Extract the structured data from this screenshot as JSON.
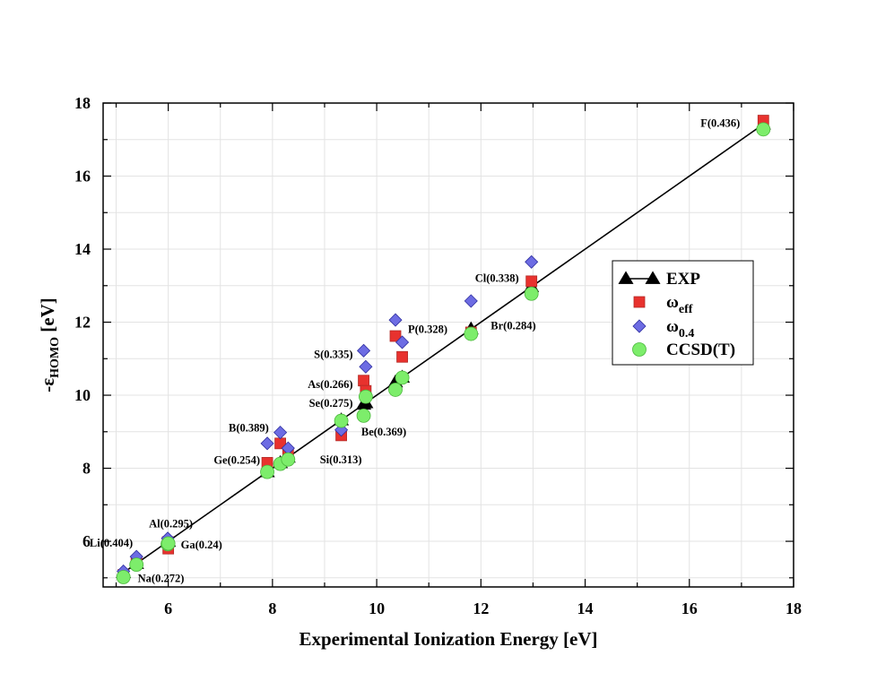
{
  "chart_data": {
    "type": "scatter",
    "xlabel": "Experimental Ionization Energy [eV]",
    "ylabel": {
      "prefix": "-ε",
      "sub": "HOMO",
      "suffix": " [eV]"
    },
    "xlim": [
      4.75,
      18.0
    ],
    "ylim": [
      4.75,
      18.0
    ],
    "xticks": [
      6,
      8,
      10,
      12,
      14,
      16,
      18
    ],
    "yticks": [
      6,
      8,
      10,
      12,
      14,
      16,
      18
    ],
    "grid": true,
    "legend_position": "right",
    "fit_line": {
      "x": [
        5.14,
        17.42
      ],
      "y": [
        5.14,
        17.42
      ]
    },
    "series": [
      {
        "name": "EXP",
        "label_main": "EXP",
        "label_sub": "",
        "marker": "triangle",
        "color": "#000000",
        "points": [
          {
            "x": 5.14,
            "y": 5.14
          },
          {
            "x": 5.39,
            "y": 5.39
          },
          {
            "x": 5.99,
            "y": 5.99
          },
          {
            "x": 6.0,
            "y": 6.0
          },
          {
            "x": 7.9,
            "y": 7.9
          },
          {
            "x": 8.15,
            "y": 8.15
          },
          {
            "x": 8.3,
            "y": 8.3
          },
          {
            "x": 9.32,
            "y": 9.32
          },
          {
            "x": 9.75,
            "y": 9.75
          },
          {
            "x": 9.79,
            "y": 9.79
          },
          {
            "x": 10.36,
            "y": 10.36
          },
          {
            "x": 10.49,
            "y": 10.49
          },
          {
            "x": 11.81,
            "y": 11.81
          },
          {
            "x": 12.97,
            "y": 12.97
          },
          {
            "x": 17.42,
            "y": 17.42
          }
        ]
      },
      {
        "name": "omega_eff",
        "label_main": "ω",
        "label_sub": "eff",
        "marker": "square",
        "color": "#e8322e",
        "points": [
          {
            "x": 5.14,
            "y": 5.08
          },
          {
            "x": 5.39,
            "y": 5.45
          },
          {
            "x": 5.99,
            "y": 5.98
          },
          {
            "x": 6.0,
            "y": 5.8
          },
          {
            "x": 7.9,
            "y": 8.15
          },
          {
            "x": 8.15,
            "y": 8.68
          },
          {
            "x": 8.3,
            "y": 8.42
          },
          {
            "x": 9.32,
            "y": 8.9
          },
          {
            "x": 9.75,
            "y": 10.4
          },
          {
            "x": 9.79,
            "y": 10.12
          },
          {
            "x": 10.36,
            "y": 11.62
          },
          {
            "x": 10.49,
            "y": 11.05
          },
          {
            "x": 11.81,
            "y": 11.72
          },
          {
            "x": 12.97,
            "y": 13.12
          },
          {
            "x": 17.42,
            "y": 17.52
          }
        ]
      },
      {
        "name": "omega_0.4",
        "label_main": "ω",
        "label_sub": "0.4",
        "marker": "diamond",
        "color": "#6d6ce3",
        "points": [
          {
            "x": 5.14,
            "y": 5.18
          },
          {
            "x": 5.39,
            "y": 5.58
          },
          {
            "x": 5.99,
            "y": 6.08
          },
          {
            "x": 7.9,
            "y": 8.68
          },
          {
            "x": 8.15,
            "y": 8.98
          },
          {
            "x": 8.3,
            "y": 8.55
          },
          {
            "x": 9.32,
            "y": 9.05
          },
          {
            "x": 9.75,
            "y": 11.22
          },
          {
            "x": 9.79,
            "y": 10.78
          },
          {
            "x": 10.36,
            "y": 12.06
          },
          {
            "x": 10.49,
            "y": 11.45
          },
          {
            "x": 11.81,
            "y": 12.58
          },
          {
            "x": 12.97,
            "y": 13.65
          }
        ]
      },
      {
        "name": "CCSD(T)",
        "label_main": "CCSD(T)",
        "label_sub": "",
        "marker": "circle",
        "color": "#7ded6b",
        "points": [
          {
            "x": 5.14,
            "y": 5.02
          },
          {
            "x": 5.39,
            "y": 5.36
          },
          {
            "x": 5.99,
            "y": 5.92
          },
          {
            "x": 6.0,
            "y": 5.94
          },
          {
            "x": 7.9,
            "y": 7.9
          },
          {
            "x": 8.15,
            "y": 8.12
          },
          {
            "x": 8.3,
            "y": 8.24
          },
          {
            "x": 9.32,
            "y": 9.3
          },
          {
            "x": 9.75,
            "y": 9.44
          },
          {
            "x": 9.79,
            "y": 9.96
          },
          {
            "x": 10.36,
            "y": 10.15
          },
          {
            "x": 10.49,
            "y": 10.48
          },
          {
            "x": 11.81,
            "y": 11.68
          },
          {
            "x": 12.97,
            "y": 12.78
          },
          {
            "x": 17.42,
            "y": 17.28
          }
        ]
      }
    ],
    "annotations": [
      {
        "text": "F(0.436)",
        "x": 17.42,
        "y": 17.45,
        "anchor": "end",
        "dx": -26,
        "dy": 0
      },
      {
        "text": "Cl(0.338)",
        "x": 12.97,
        "y": 13.2,
        "anchor": "end",
        "dx": -14,
        "dy": 0
      },
      {
        "text": "Br(0.284)",
        "x": 11.81,
        "y": 11.9,
        "anchor": "start",
        "dx": 22,
        "dy": 0
      },
      {
        "text": "P(0.328)",
        "x": 10.36,
        "y": 11.8,
        "anchor": "start",
        "dx": 14,
        "dy": 0
      },
      {
        "text": "S(0.335)",
        "x": 9.75,
        "y": 11.12,
        "anchor": "end",
        "dx": -12,
        "dy": 0
      },
      {
        "text": "As(0.266)",
        "x": 9.75,
        "y": 10.3,
        "anchor": "end",
        "dx": -12,
        "dy": 0
      },
      {
        "text": "Se(0.275)",
        "x": 9.75,
        "y": 9.78,
        "anchor": "end",
        "dx": -12,
        "dy": 0
      },
      {
        "text": "Be(0.369)",
        "x": 9.79,
        "y": 9.0,
        "anchor": "start",
        "dx": -5,
        "dy": 0
      },
      {
        "text": "B(0.389)",
        "x": 7.9,
        "y": 9.1,
        "anchor": "start",
        "dx": -43,
        "dy": 0
      },
      {
        "text": "Si(0.313)",
        "x": 9.32,
        "y": 8.23,
        "anchor": "end",
        "dx": 23,
        "dy": 0
      },
      {
        "text": "Ge(0.254)",
        "x": 7.9,
        "y": 8.22,
        "anchor": "end",
        "dx": -8,
        "dy": 0
      },
      {
        "text": "Al(0.295)",
        "x": 5.99,
        "y": 6.48,
        "anchor": "end",
        "dx": 28,
        "dy": 0
      },
      {
        "text": "Li(0.404)",
        "x": 5.39,
        "y": 5.95,
        "anchor": "end",
        "dx": -4,
        "dy": 0
      },
      {
        "text": "Ga(0.24)",
        "x": 6.0,
        "y": 5.9,
        "anchor": "start",
        "dx": 14,
        "dy": 0
      },
      {
        "text": "Na(0.272)",
        "x": 5.14,
        "y": 4.98,
        "anchor": "start",
        "dx": 16,
        "dy": 0
      }
    ]
  }
}
